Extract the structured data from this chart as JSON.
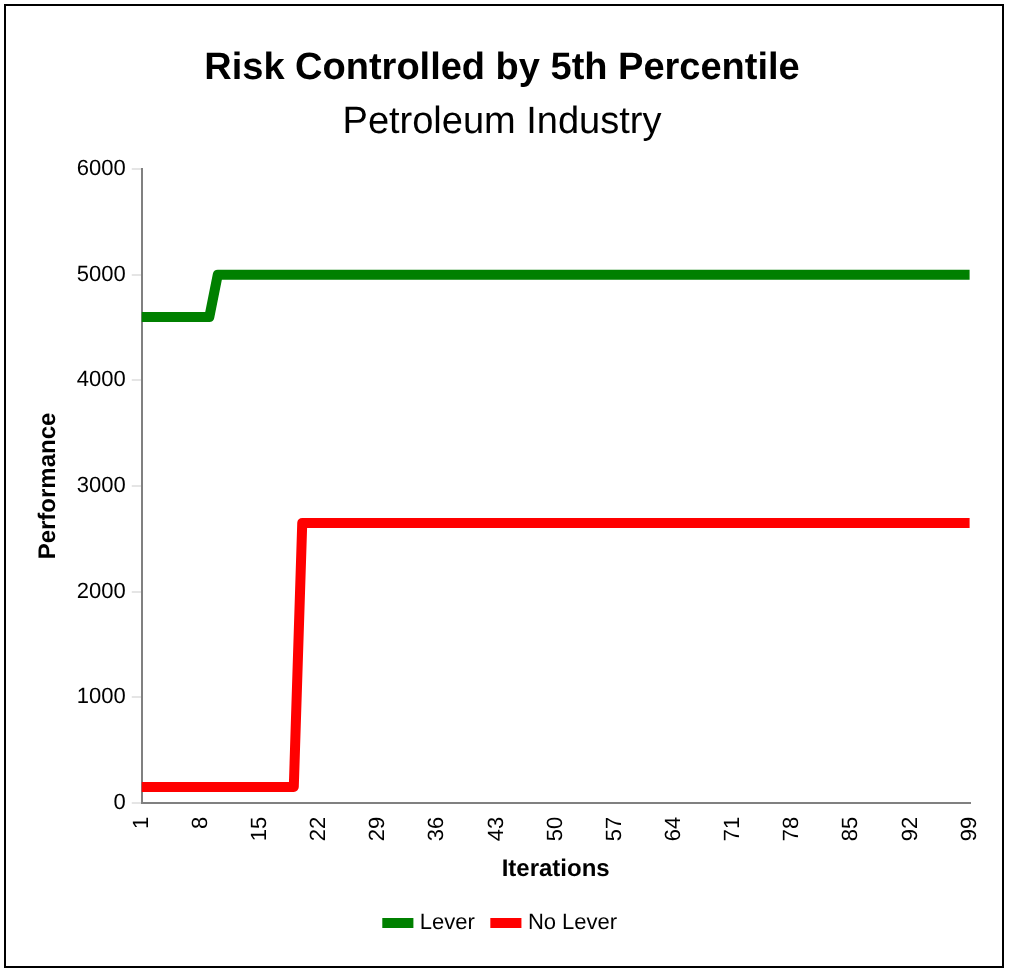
{
  "chart_data": {
    "type": "line",
    "title": "Risk Controlled by 5th Percentile",
    "subtitle": "Petroleum Industry",
    "xlabel": "Iterations",
    "ylabel": "Performance",
    "categories": [
      "1",
      null,
      null,
      null,
      null,
      null,
      null,
      "8",
      null,
      null,
      null,
      null,
      null,
      null,
      "15",
      null,
      null,
      null,
      null,
      null,
      null,
      "22",
      null,
      null,
      null,
      null,
      null,
      null,
      "29",
      null,
      null,
      null,
      null,
      null,
      null,
      "36",
      null,
      null,
      null,
      null,
      null,
      null,
      "43",
      null,
      null,
      null,
      null,
      null,
      null,
      "50",
      null,
      null,
      null,
      null,
      null,
      null,
      "57",
      null,
      null,
      null,
      null,
      null,
      null,
      "64",
      null,
      null,
      null,
      null,
      null,
      null,
      "71",
      null,
      null,
      null,
      null,
      null,
      null,
      "78",
      null,
      null,
      null,
      null,
      null,
      null,
      "85",
      null,
      null,
      null,
      null,
      null,
      null,
      "92",
      null,
      null,
      null,
      null,
      null,
      null,
      "99"
    ],
    "series": [
      {
        "name": "Lever",
        "color": "#008000",
        "values": [
          4600,
          4600,
          4600,
          4600,
          4600,
          4600,
          4600,
          4600,
          4600,
          5000,
          5000,
          5000,
          5000,
          5000,
          5000,
          5000,
          5000,
          5000,
          5000,
          5000,
          5000,
          5000,
          5000,
          5000,
          5000,
          5000,
          5000,
          5000,
          5000,
          5000,
          5000,
          5000,
          5000,
          5000,
          5000,
          5000,
          5000,
          5000,
          5000,
          5000,
          5000,
          5000,
          5000,
          5000,
          5000,
          5000,
          5000,
          5000,
          5000,
          5000,
          5000,
          5000,
          5000,
          5000,
          5000,
          5000,
          5000,
          5000,
          5000,
          5000,
          5000,
          5000,
          5000,
          5000,
          5000,
          5000,
          5000,
          5000,
          5000,
          5000,
          5000,
          5000,
          5000,
          5000,
          5000,
          5000,
          5000,
          5000,
          5000,
          5000,
          5000,
          5000,
          5000,
          5000,
          5000,
          5000,
          5000,
          5000,
          5000,
          5000,
          5000,
          5000,
          5000,
          5000,
          5000,
          5000,
          5000,
          5000,
          5000
        ]
      },
      {
        "name": "No Lever",
        "color": "#ff0000",
        "values": [
          150,
          150,
          150,
          150,
          150,
          150,
          150,
          150,
          150,
          150,
          150,
          150,
          150,
          150,
          150,
          150,
          150,
          150,
          150,
          2650,
          2650,
          2650,
          2650,
          2650,
          2650,
          2650,
          2650,
          2650,
          2650,
          2650,
          2650,
          2650,
          2650,
          2650,
          2650,
          2650,
          2650,
          2650,
          2650,
          2650,
          2650,
          2650,
          2650,
          2650,
          2650,
          2650,
          2650,
          2650,
          2650,
          2650,
          2650,
          2650,
          2650,
          2650,
          2650,
          2650,
          2650,
          2650,
          2650,
          2650,
          2650,
          2650,
          2650,
          2650,
          2650,
          2650,
          2650,
          2650,
          2650,
          2650,
          2650,
          2650,
          2650,
          2650,
          2650,
          2650,
          2650,
          2650,
          2650,
          2650,
          2650,
          2650,
          2650,
          2650,
          2650,
          2650,
          2650,
          2650,
          2650,
          2650,
          2650,
          2650,
          2650,
          2650,
          2650,
          2650,
          2650,
          2650,
          2650
        ]
      }
    ],
    "ylim": [
      0,
      6000
    ],
    "yticks": [
      0,
      1000,
      2000,
      3000,
      4000,
      5000,
      6000
    ],
    "grid": false,
    "legend": "bottom",
    "marker": "none",
    "line_style": "solid"
  }
}
